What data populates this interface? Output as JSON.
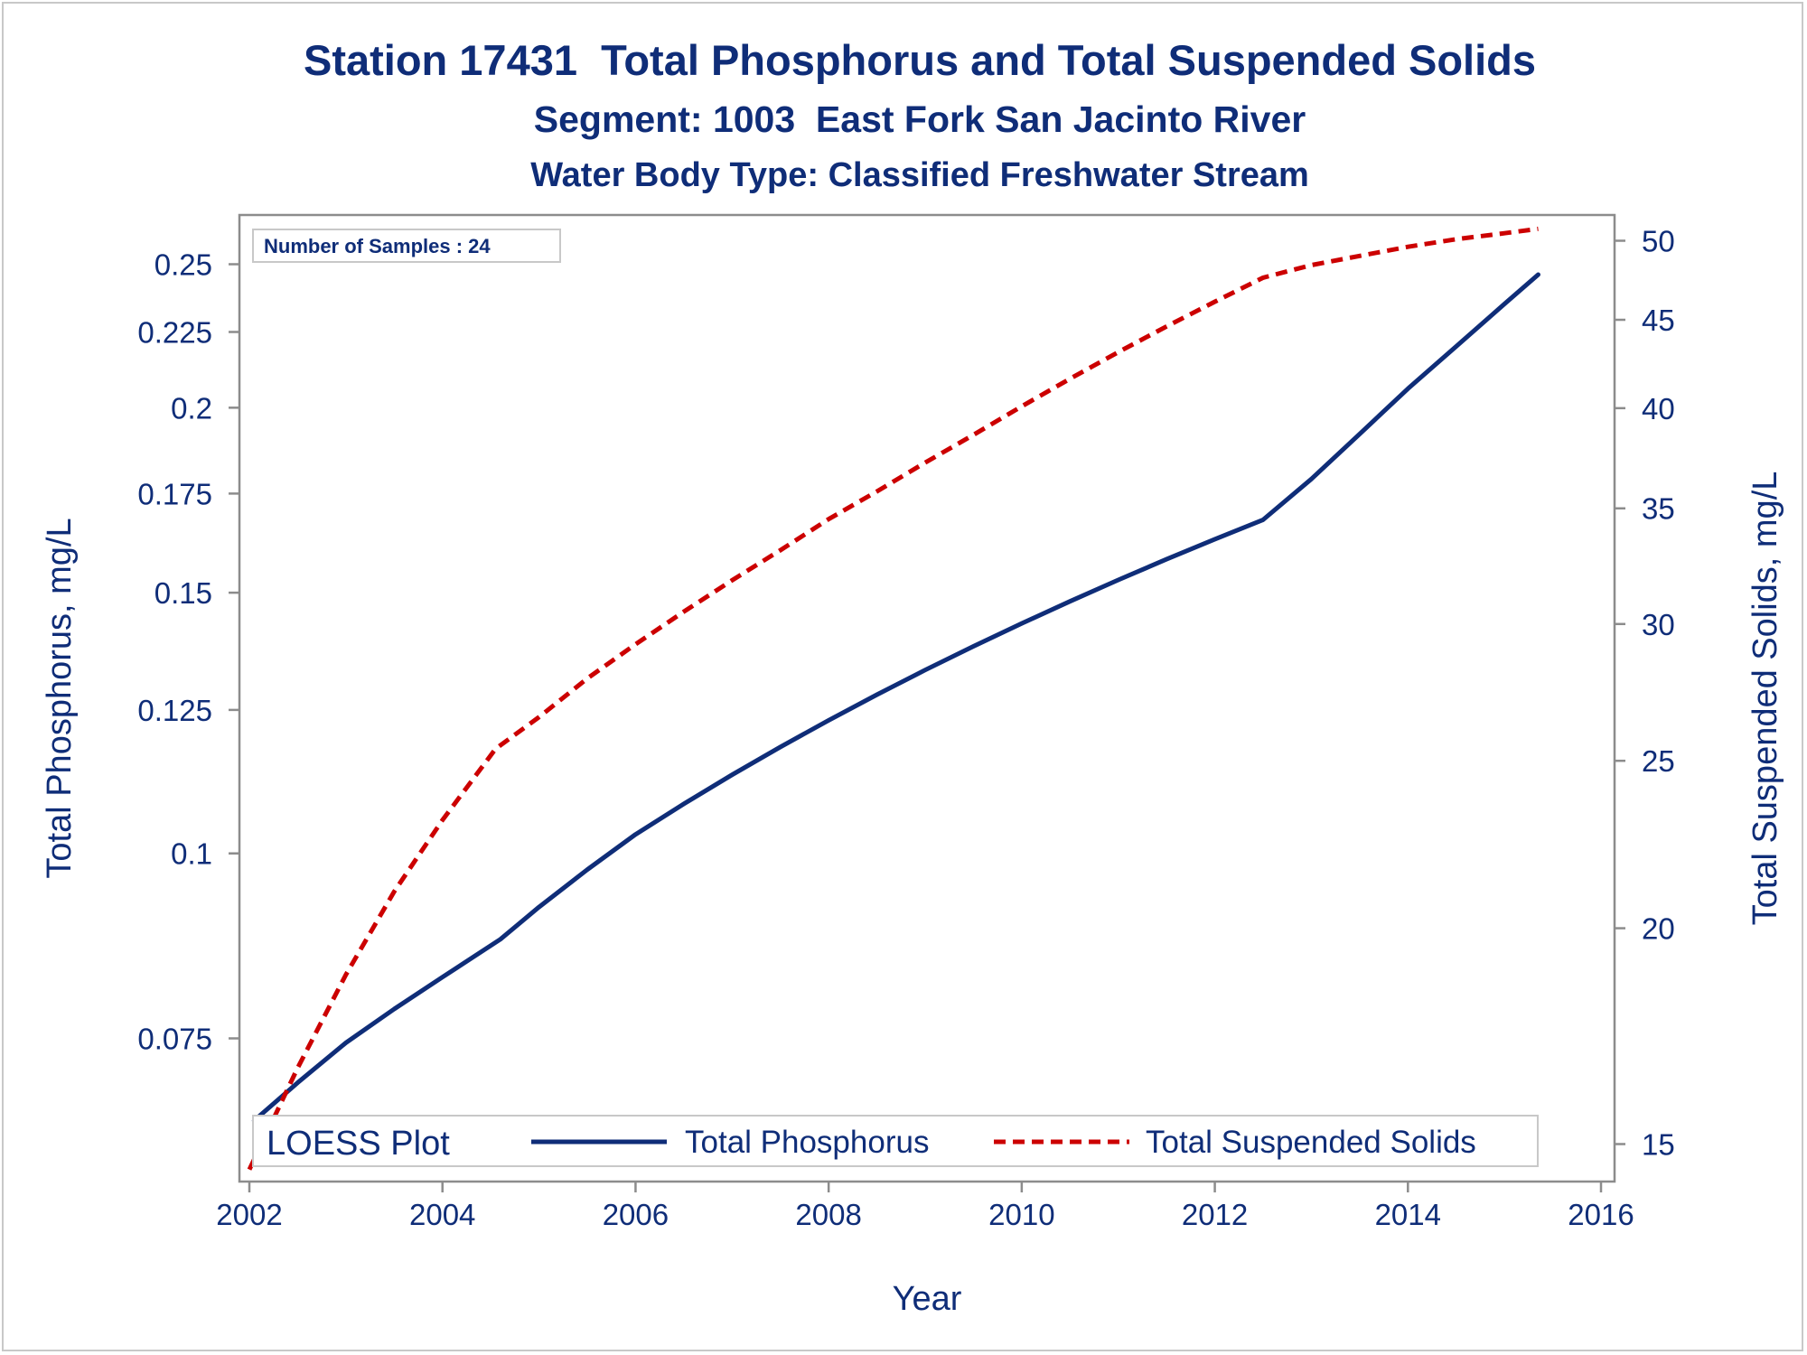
{
  "chart_data": {
    "type": "line",
    "title": "Station 17431  Total Phosphorus and Total Suspended Solids",
    "subtitle": "Segment: 1003  East Fork San Jacinto River",
    "subtitle2": "Water Body Type: Classified Freshwater Stream",
    "xlabel": "Year",
    "ylabel": "Total Phosphorus, mg/L",
    "y2label": "Total Suspended Solids, mg/L",
    "xlim": [
      2002,
      2016
    ],
    "x_ticks": [
      2002,
      2004,
      2006,
      2008,
      2010,
      2012,
      2014,
      2016
    ],
    "y_scale": "log",
    "y_ticks": [
      0.075,
      0.1,
      0.125,
      0.15,
      0.175,
      0.2,
      0.225,
      0.25
    ],
    "y_tick_labels": [
      "0.075",
      "0.1",
      "0.125",
      "0.15",
      "0.175",
      "0.2",
      "0.225",
      "0.25"
    ],
    "y2_scale": "log",
    "y2_ticks": [
      15,
      20,
      25,
      30,
      35,
      40,
      45,
      50
    ],
    "y2_tick_labels": [
      "15",
      "20",
      "25",
      "30",
      "35",
      "40",
      "45",
      "50"
    ],
    "annotation": "Number of Samples : 24",
    "legend": {
      "title": "LOESS Plot",
      "position": "bottom-inside"
    },
    "grid": false,
    "series": [
      {
        "name": "Total Phosphorus",
        "axis": "left",
        "color": "#0f2d78",
        "style": "solid",
        "x": [
          2002.05,
          2002.5,
          2003.0,
          2003.5,
          2004.0,
          2004.6,
          2005.0,
          2005.5,
          2006.0,
          2006.5,
          2007.0,
          2007.5,
          2008.0,
          2008.5,
          2009.0,
          2009.5,
          2010.0,
          2010.5,
          2011.0,
          2011.5,
          2012.0,
          2012.5,
          2013.0,
          2013.5,
          2014.0,
          2014.5,
          2015.0,
          2015.35
        ],
        "y": [
          0.066,
          0.07,
          0.0745,
          0.0785,
          0.0825,
          0.0875,
          0.092,
          0.0975,
          0.103,
          0.108,
          0.113,
          0.118,
          0.123,
          0.128,
          0.133,
          0.138,
          0.143,
          0.148,
          0.153,
          0.158,
          0.163,
          0.168,
          0.179,
          0.192,
          0.206,
          0.22,
          0.235,
          0.246
        ]
      },
      {
        "name": "Total Suspended Solids",
        "axis": "right",
        "color": "#cc0000",
        "style": "dashed",
        "x": [
          2002.0,
          2002.5,
          2003.0,
          2003.5,
          2004.0,
          2004.55,
          2005.0,
          2005.5,
          2006.0,
          2006.5,
          2007.0,
          2007.5,
          2008.0,
          2008.5,
          2009.0,
          2009.5,
          2010.0,
          2010.5,
          2011.0,
          2011.5,
          2012.0,
          2012.5,
          2013.0,
          2013.5,
          2014.0,
          2014.5,
          2015.0,
          2015.35
        ],
        "y": [
          14.5,
          16.6,
          18.8,
          21.0,
          23.1,
          25.4,
          26.5,
          27.9,
          29.2,
          30.5,
          31.8,
          33.1,
          34.5,
          35.8,
          37.2,
          38.6,
          40.1,
          41.6,
          43.1,
          44.6,
          46.1,
          47.6,
          48.4,
          49.0,
          49.6,
          50.1,
          50.5,
          50.8
        ]
      }
    ]
  },
  "colors": {
    "text": "#0f2d78",
    "axis": "#8c8c8c"
  }
}
